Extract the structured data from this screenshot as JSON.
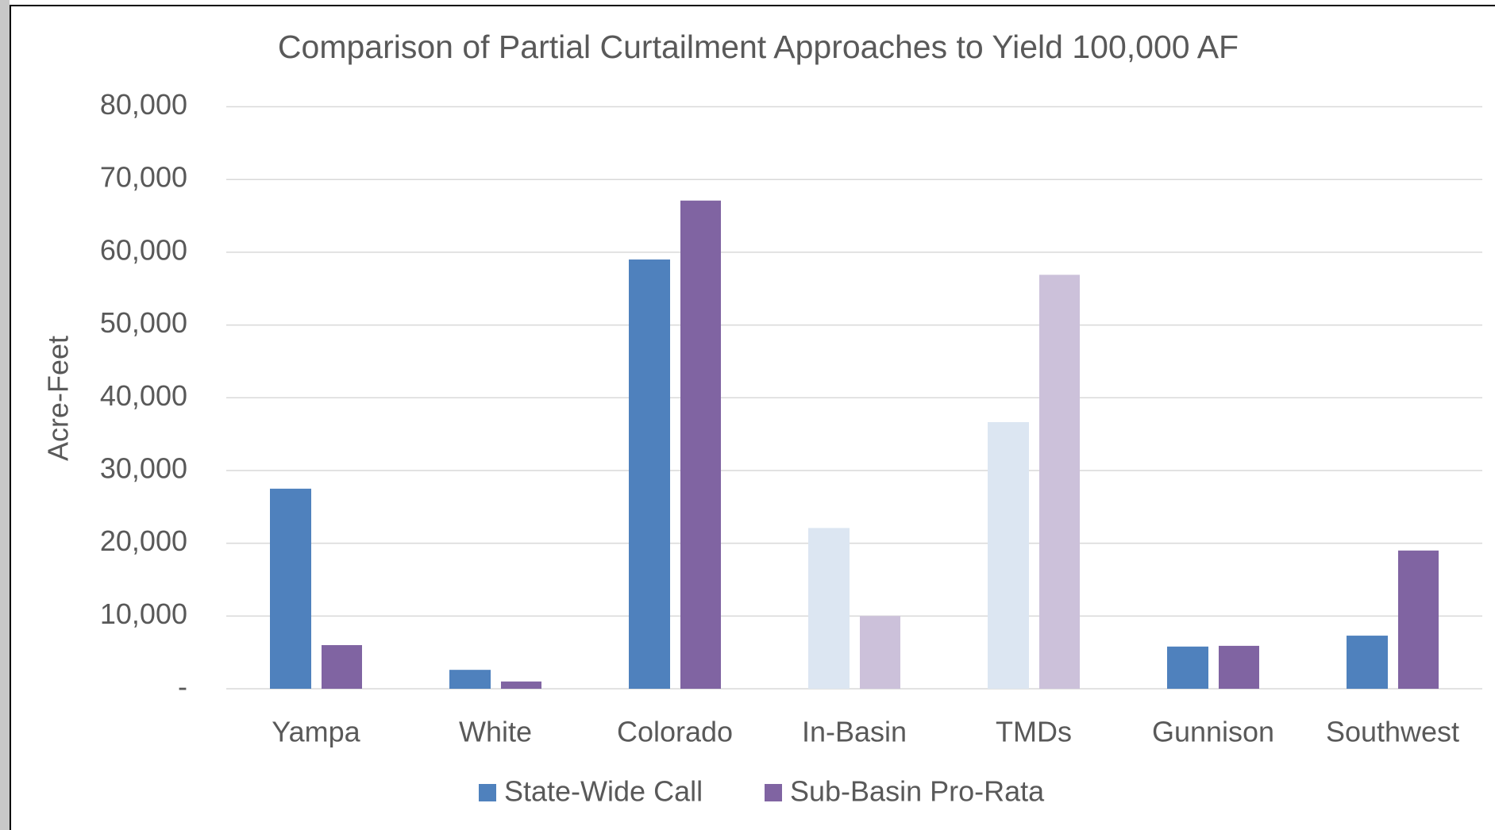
{
  "chart_data": {
    "type": "bar",
    "title": "Comparison of Partial Curtailment Approaches to Yield 100,000 AF",
    "y_label": "Acre-Feet",
    "categories": [
      "Yampa",
      "White",
      "Colorado",
      "In-Basin",
      "TMDs",
      "Gunnison",
      "Southwest"
    ],
    "series": [
      {
        "name": "State-Wide Call",
        "color": "#4f81bd",
        "colors": [
          "#4f81bd",
          "#4f81bd",
          "#4f81bd",
          "#dce6f2",
          "#dce6f2",
          "#4f81bd",
          "#4f81bd"
        ],
        "values": [
          27500,
          2600,
          59000,
          22100,
          36650,
          5800,
          7300
        ]
      },
      {
        "name": "Sub-Basin Pro-Rata",
        "color": "#8064a2",
        "colors": [
          "#8064a2",
          "#8064a2",
          "#8064a2",
          "#ccc1da",
          "#ccc1da",
          "#8064a2",
          "#8064a2"
        ],
        "values": [
          6000,
          1000,
          67100,
          10000,
          56900,
          5900,
          19000
        ]
      }
    ],
    "ylim": [
      0,
      80000
    ],
    "yticks": [
      {
        "value": 0,
        "label": "-"
      },
      {
        "value": 10000,
        "label": "10,000"
      },
      {
        "value": 20000,
        "label": "20,000"
      },
      {
        "value": 30000,
        "label": "30,000"
      },
      {
        "value": 40000,
        "label": "40,000"
      },
      {
        "value": 50000,
        "label": "50,000"
      },
      {
        "value": 60000,
        "label": "60,000"
      },
      {
        "value": 70000,
        "label": "70,000"
      },
      {
        "value": 80000,
        "label": "80,000"
      }
    ],
    "grid": true,
    "legend": "bottom"
  }
}
